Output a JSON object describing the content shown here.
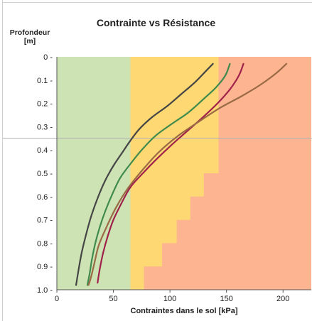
{
  "chart_data": {
    "type": "line",
    "title": "Contrainte vs Résistance",
    "ylabel": "Profondeur\n[m]",
    "xlabel": "Contraintes dans le sol [kPa]",
    "xlim": [
      0,
      225
    ],
    "ylim": [
      0,
      1.0
    ],
    "y_inverted": true,
    "x_ticks": [
      "0",
      "50",
      "100",
      "150",
      "200"
    ],
    "x_tick_values": [
      0,
      50,
      100,
      150,
      200
    ],
    "y_ticks": [
      "0 -",
      "0.1 -",
      "0.2 -",
      "0.3 -",
      "0.4 -",
      "0.5 -",
      "0.6 -",
      "0.7 -",
      "0.8 -",
      "0.9 -",
      "1.0 -"
    ],
    "y_tick_values": [
      0,
      0.1,
      0.2,
      0.3,
      0.4,
      0.5,
      0.6,
      0.7,
      0.8,
      0.9,
      1.0
    ],
    "reference_depth": 0.35,
    "zones": {
      "green_limit": 65,
      "yellow_boundary": [
        {
          "depth": 0,
          "x": 143
        },
        {
          "depth": 0.5,
          "x": 143
        },
        {
          "depth": 0.5,
          "x": 130
        },
        {
          "depth": 0.6,
          "x": 130
        },
        {
          "depth": 0.6,
          "x": 118
        },
        {
          "depth": 0.7,
          "x": 118
        },
        {
          "depth": 0.7,
          "x": 106
        },
        {
          "depth": 0.8,
          "x": 106
        },
        {
          "depth": 0.8,
          "x": 93
        },
        {
          "depth": 0.9,
          "x": 93
        },
        {
          "depth": 0.9,
          "x": 77
        },
        {
          "depth": 1.0,
          "x": 77
        }
      ],
      "colors": {
        "green": "#cde3b4",
        "yellow": "#fdd873",
        "red": "#fdb491"
      }
    },
    "series": [
      {
        "color": "#454545",
        "points": [
          [
            138,
            0.03
          ],
          [
            132,
            0.06
          ],
          [
            122,
            0.11
          ],
          [
            110,
            0.16
          ],
          [
            98,
            0.21
          ],
          [
            84,
            0.26
          ],
          [
            73,
            0.31
          ],
          [
            65,
            0.36
          ],
          [
            58,
            0.41
          ],
          [
            51,
            0.46
          ],
          [
            45,
            0.51
          ],
          [
            40,
            0.56
          ],
          [
            35,
            0.62
          ],
          [
            30,
            0.69
          ],
          [
            26,
            0.76
          ],
          [
            22,
            0.84
          ],
          [
            19,
            0.92
          ],
          [
            17,
            0.98
          ]
        ]
      },
      {
        "color": "#3f8a4c",
        "points": [
          [
            153,
            0.03
          ],
          [
            149,
            0.08
          ],
          [
            141,
            0.13
          ],
          [
            130,
            0.18
          ],
          [
            116,
            0.24
          ],
          [
            101,
            0.29
          ],
          [
            87,
            0.34
          ],
          [
            75,
            0.4
          ],
          [
            65,
            0.46
          ],
          [
            56,
            0.52
          ],
          [
            49,
            0.59
          ],
          [
            43,
            0.66
          ],
          [
            38,
            0.73
          ],
          [
            34,
            0.8
          ],
          [
            31,
            0.87
          ],
          [
            29,
            0.93
          ],
          [
            27,
            0.98
          ]
        ]
      },
      {
        "color": "#a0224a",
        "points": [
          [
            165,
            0.03
          ],
          [
            161,
            0.08
          ],
          [
            153,
            0.14
          ],
          [
            142,
            0.2
          ],
          [
            129,
            0.26
          ],
          [
            115,
            0.32
          ],
          [
            101,
            0.38
          ],
          [
            88,
            0.44
          ],
          [
            76,
            0.5
          ],
          [
            65,
            0.56
          ],
          [
            57,
            0.63
          ],
          [
            50,
            0.7
          ],
          [
            45,
            0.77
          ],
          [
            41,
            0.84
          ],
          [
            38,
            0.91
          ],
          [
            36,
            0.97
          ]
        ]
      },
      {
        "color": "#9a6a45",
        "points": [
          [
            203,
            0.03
          ],
          [
            194,
            0.07
          ],
          [
            180,
            0.12
          ],
          [
            163,
            0.17
          ],
          [
            144,
            0.22
          ],
          [
            125,
            0.28
          ],
          [
            107,
            0.34
          ],
          [
            90,
            0.41
          ],
          [
            75,
            0.49
          ],
          [
            62,
            0.57
          ],
          [
            52,
            0.65
          ],
          [
            44,
            0.73
          ],
          [
            37,
            0.81
          ],
          [
            33,
            0.89
          ],
          [
            30,
            0.95
          ],
          [
            28,
            0.98
          ]
        ]
      }
    ]
  }
}
